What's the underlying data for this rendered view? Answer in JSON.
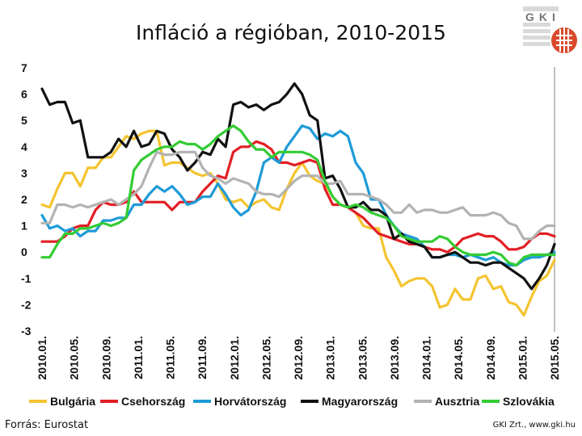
{
  "chart_data": {
    "type": "line",
    "title": "Infláció a régióban, 2010-2015",
    "xlabel": "",
    "ylabel": "",
    "ylim": [
      -3,
      7
    ],
    "yticks": [
      "7",
      "6",
      "5",
      "4",
      "3",
      "2",
      "1",
      "0",
      "-1",
      "-2",
      "-3"
    ],
    "xticks": [
      "2010.01.",
      "2010.05.",
      "2010.09.",
      "2011.01.",
      "2011.05.",
      "2011.09.",
      "2012.01.",
      "2012.05.",
      "2012.09.",
      "2013.01.",
      "2013.05.",
      "2013.09.",
      "2014.01.",
      "2014.05.",
      "2014.09.",
      "2015.01.",
      "2015.05."
    ],
    "x_range_months": 64,
    "series": [
      {
        "name": "Bulgária",
        "color": "#f4c430",
        "values": [
          1.8,
          1.7,
          2.4,
          3.0,
          3.0,
          2.5,
          3.2,
          3.2,
          3.6,
          3.6,
          4.0,
          4.4,
          4.3,
          4.5,
          4.6,
          4.6,
          3.3,
          3.4,
          3.4,
          3.2,
          3.0,
          2.9,
          3.0,
          2.6,
          2.0,
          1.9,
          2.0,
          1.7,
          1.9,
          2.0,
          1.7,
          1.6,
          2.4,
          3.0,
          3.4,
          2.9,
          2.7,
          2.6,
          2.1,
          1.8,
          1.7,
          1.5,
          1.0,
          0.9,
          0.9,
          -0.2,
          -0.7,
          -1.3,
          -1.1,
          -1.0,
          -1.0,
          -1.3,
          -2.1,
          -2.0,
          -1.4,
          -1.8,
          -1.8,
          -1.0,
          -0.9,
          -1.4,
          -1.3,
          -1.9,
          -2.0,
          -2.4,
          -1.7,
          -1.1,
          -0.9,
          -0.3
        ]
      },
      {
        "name": "Csehország",
        "color": "#e21f26",
        "values": [
          0.4,
          0.4,
          0.4,
          0.6,
          0.9,
          1.0,
          1.0,
          1.6,
          1.9,
          1.8,
          1.8,
          1.9,
          2.3,
          1.9,
          1.9,
          1.9,
          1.9,
          1.6,
          1.9,
          1.9,
          1.9,
          2.3,
          2.6,
          2.9,
          2.8,
          3.8,
          4.0,
          4.0,
          4.2,
          4.1,
          3.9,
          3.4,
          3.4,
          3.3,
          3.4,
          3.5,
          3.4,
          2.4,
          1.8,
          1.8,
          1.7,
          1.5,
          1.3,
          1.0,
          0.7,
          0.6,
          0.5,
          0.4,
          0.3,
          0.3,
          0.2,
          0.1,
          0.1,
          0.0,
          0.2,
          0.5,
          0.6,
          0.7,
          0.6,
          0.6,
          0.4,
          0.1,
          0.1,
          0.2,
          0.5,
          0.7,
          0.7,
          0.6
        ]
      },
      {
        "name": "Horvátország",
        "color": "#1e9bd7",
        "values": [
          1.4,
          0.9,
          1.0,
          0.8,
          0.9,
          0.6,
          0.8,
          0.8,
          1.2,
          1.2,
          1.3,
          1.3,
          1.8,
          1.8,
          2.2,
          2.5,
          2.3,
          2.5,
          2.2,
          1.8,
          1.9,
          2.1,
          2.1,
          2.6,
          2.2,
          1.7,
          1.4,
          1.6,
          2.3,
          3.4,
          3.6,
          3.4,
          4.0,
          4.4,
          4.8,
          4.7,
          4.3,
          4.5,
          4.4,
          4.6,
          4.4,
          3.4,
          3.0,
          2.0,
          2.0,
          1.4,
          1.0,
          0.7,
          0.6,
          0.5,
          0.2,
          -0.2,
          -0.2,
          -0.1,
          -0.1,
          -0.2,
          -0.1,
          -0.2,
          -0.3,
          -0.2,
          -0.4,
          -0.5,
          -0.5,
          -0.3,
          -0.2,
          -0.2,
          -0.1,
          0.0
        ]
      },
      {
        "name": "Magyarország",
        "color": "#111111",
        "values": [
          6.2,
          5.6,
          5.7,
          5.7,
          4.9,
          5.0,
          3.6,
          3.6,
          3.6,
          3.8,
          4.3,
          4.0,
          4.6,
          4.0,
          4.1,
          4.6,
          4.5,
          3.9,
          3.6,
          3.1,
          3.4,
          3.8,
          3.7,
          4.3,
          4.0,
          5.6,
          5.7,
          5.5,
          5.6,
          5.4,
          5.6,
          5.7,
          6.0,
          6.4,
          6.0,
          5.2,
          5.0,
          2.8,
          2.9,
          2.4,
          1.7,
          1.7,
          1.9,
          1.6,
          1.6,
          1.4,
          0.5,
          0.7,
          0.4,
          0.3,
          0.2,
          -0.2,
          -0.2,
          -0.1,
          0.0,
          -0.2,
          -0.4,
          -0.4,
          -0.5,
          -0.4,
          -0.4,
          -0.6,
          -0.8,
          -1.0,
          -1.4,
          -1.0,
          -0.5,
          0.3
        ]
      },
      {
        "name": "Ausztria",
        "color": "#b3b3b3",
        "values": [
          1.1,
          1.1,
          1.8,
          1.8,
          1.7,
          1.8,
          1.7,
          1.8,
          1.9,
          2.0,
          1.8,
          2.0,
          2.2,
          2.5,
          3.2,
          3.8,
          3.7,
          3.7,
          3.8,
          3.8,
          3.8,
          3.2,
          2.9,
          2.8,
          2.6,
          2.8,
          2.7,
          2.6,
          2.3,
          2.2,
          2.2,
          2.1,
          2.4,
          2.7,
          2.9,
          2.9,
          2.9,
          2.6,
          2.6,
          2.7,
          2.2,
          2.2,
          2.2,
          2.1,
          2.0,
          1.8,
          1.5,
          1.5,
          1.8,
          1.5,
          1.6,
          1.6,
          1.5,
          1.5,
          1.6,
          1.7,
          1.4,
          1.4,
          1.4,
          1.5,
          1.4,
          1.1,
          1.0,
          0.5,
          0.5,
          0.8,
          1.0,
          1.0
        ]
      },
      {
        "name": "Szlovákia",
        "color": "#33cc33",
        "values": [
          -0.2,
          -0.2,
          0.3,
          0.7,
          0.7,
          0.9,
          0.9,
          1.0,
          1.1,
          1.0,
          1.1,
          1.3,
          3.1,
          3.5,
          3.7,
          3.9,
          4.0,
          4.0,
          4.2,
          4.1,
          4.1,
          3.9,
          4.1,
          4.4,
          4.6,
          4.8,
          4.6,
          4.2,
          3.9,
          3.9,
          3.6,
          3.8,
          3.8,
          3.8,
          3.8,
          3.7,
          3.5,
          2.7,
          2.1,
          1.8,
          1.7,
          1.8,
          1.7,
          1.5,
          1.4,
          1.3,
          1.0,
          0.6,
          0.5,
          0.4,
          0.4,
          0.4,
          0.6,
          0.5,
          0.2,
          0.0,
          -0.1,
          -0.1,
          -0.1,
          0.0,
          -0.1,
          -0.4,
          -0.5,
          -0.2,
          -0.1,
          -0.1,
          -0.1,
          -0.1
        ]
      }
    ]
  },
  "logo_text": "GKI",
  "source": "Forrás: Eurostat",
  "credit": "GKI Zrt., www.gki.hu"
}
